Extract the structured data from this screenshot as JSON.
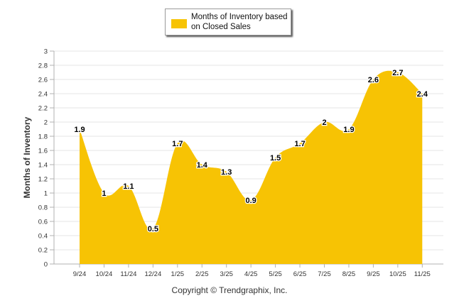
{
  "chart_data": {
    "type": "area",
    "title": "",
    "xlabel": "",
    "ylabel": "Months of Inventory",
    "ylim": [
      0,
      3
    ],
    "ytick_step": 0.2,
    "ytick_labels": [
      "0",
      "0.2",
      "0.4",
      "0.6",
      "0.8",
      "1",
      "1.2",
      "1.4",
      "1.6",
      "1.8",
      "2",
      "2.2",
      "2.4",
      "2.6",
      "2.8",
      "3"
    ],
    "categories": [
      "9/24",
      "10/24",
      "11/24",
      "12/24",
      "1/25",
      "2/25",
      "3/25",
      "4/25",
      "5/25",
      "6/25",
      "7/25",
      "8/25",
      "9/25",
      "10/25",
      "11/25"
    ],
    "series": [
      {
        "name": "Months of Inventory based on Closed Sales",
        "values": [
          1.9,
          1,
          1.1,
          0.5,
          1.7,
          1.4,
          1.3,
          0.9,
          1.5,
          1.7,
          2,
          1.9,
          2.6,
          2.7,
          2.4
        ],
        "value_labels": [
          "1.9",
          "1",
          "1.1",
          "0.5",
          "1.7",
          "1.4",
          "1.3",
          "0.9",
          "1.5",
          "1.7",
          "2",
          "1.9",
          "2.6",
          "2.7",
          "2.4"
        ],
        "color": "#f7c304"
      }
    ],
    "legend": {
      "position": "top-center",
      "label": "Months of Inventory based on Closed Sales"
    },
    "grid": true,
    "grid_color": "#e6e6e6",
    "axis_color": "#b0b0b0"
  },
  "footer": {
    "copyright": "Copyright © Trendgraphix, Inc."
  }
}
